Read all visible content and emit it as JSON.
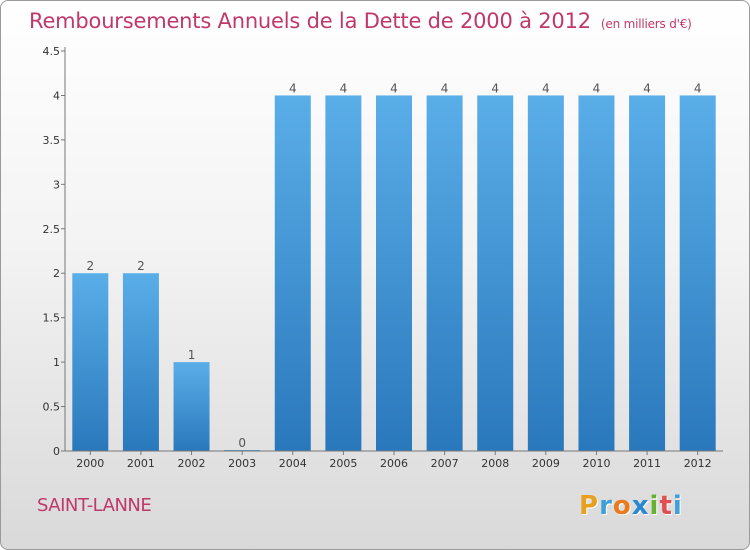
{
  "chart_data": {
    "type": "bar",
    "title": "Remboursements Annuels de la Dette de 2000 à 2012",
    "subtitle": "(en milliers d'€)",
    "categories": [
      "2000",
      "2001",
      "2002",
      "2003",
      "2004",
      "2005",
      "2006",
      "2007",
      "2008",
      "2009",
      "2010",
      "2011",
      "2012"
    ],
    "values": [
      2,
      2,
      1,
      0,
      4,
      4,
      4,
      4,
      4,
      4,
      4,
      4,
      4
    ],
    "data_labels": [
      "2",
      "2",
      "1",
      "0",
      "4",
      "4",
      "4",
      "4",
      "4",
      "4",
      "4",
      "4",
      "4"
    ],
    "ylim": [
      0,
      4.5
    ],
    "yticks": [
      0,
      0.5,
      1,
      1.5,
      2,
      2.5,
      3,
      3.5,
      4,
      4.5
    ],
    "ytick_labels": [
      "0",
      "0.5",
      "1",
      "1.5",
      "2",
      "2.5",
      "3",
      "3.5",
      "4",
      "4.5"
    ],
    "grid": false,
    "bar_color": "#4a9be0"
  },
  "place_name": "SAINT-LANNE",
  "brand": {
    "letters": [
      "P",
      "r",
      "o",
      "x",
      "i",
      "t",
      "i"
    ],
    "colors": [
      "#e8a020",
      "#3fa0d8",
      "#e87a20",
      "#2a88d0",
      "#6ab030",
      "#e05050",
      "#3fa0d8"
    ]
  }
}
